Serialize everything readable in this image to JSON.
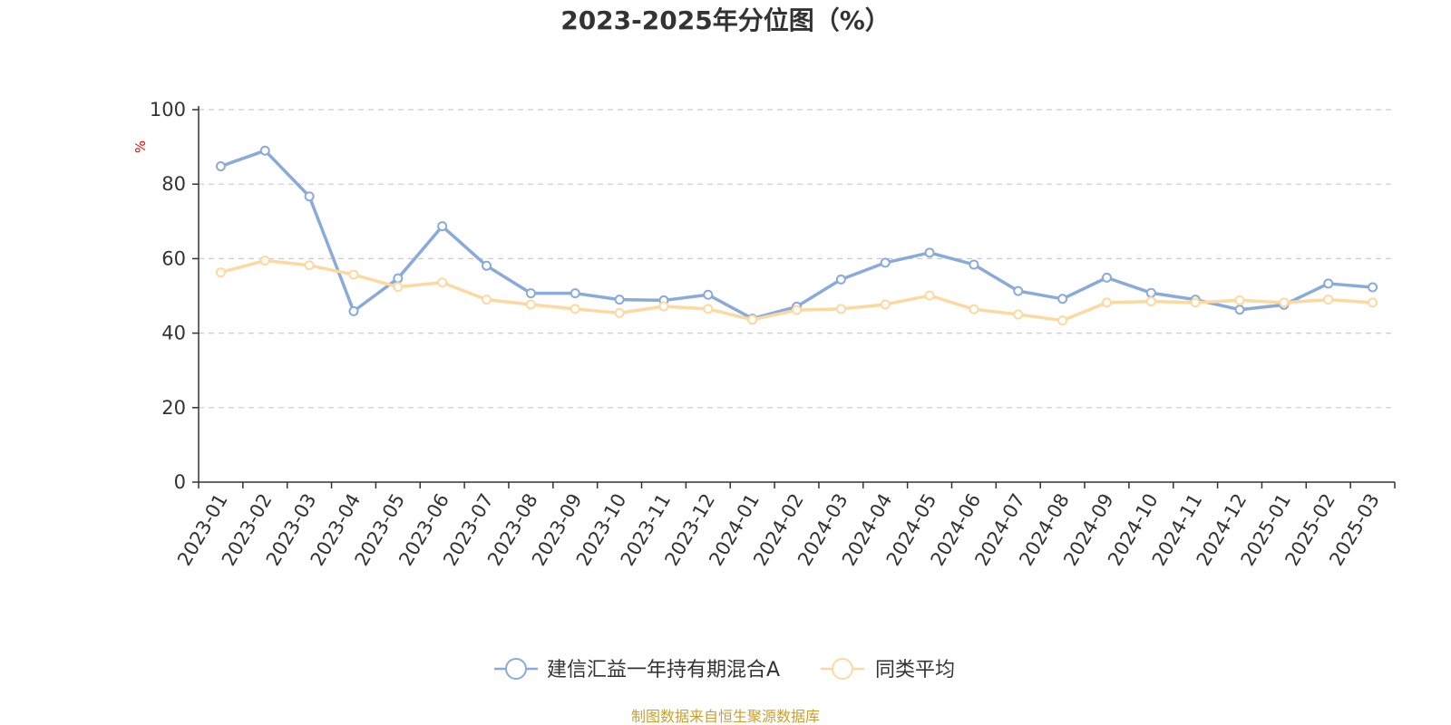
{
  "chart_data": {
    "type": "line",
    "title": "2023-2025年分位图（%）",
    "ylabel": "%",
    "xlabel": "",
    "ylim": [
      0,
      100
    ],
    "yticks": [
      0,
      20,
      40,
      60,
      80,
      100
    ],
    "grid": true,
    "legend_position": "bottom-center",
    "categories": [
      "2023-01",
      "2023-02",
      "2023-03",
      "2023-04",
      "2023-05",
      "2023-06",
      "2023-07",
      "2023-08",
      "2023-09",
      "2023-10",
      "2023-11",
      "2023-12",
      "2024-01",
      "2024-02",
      "2024-03",
      "2024-04",
      "2024-05",
      "2024-06",
      "2024-07",
      "2024-08",
      "2024-09",
      "2024-10",
      "2024-11",
      "2024-12",
      "2025-01",
      "2025-02",
      "2025-03"
    ],
    "series": [
      {
        "name": "建信汇益一年持有期混合A",
        "color": "#8aabd9",
        "values": [
          84.8,
          89.0,
          76.7,
          45.9,
          54.7,
          68.7,
          58.1,
          50.7,
          50.7,
          49.0,
          48.8,
          50.3,
          43.9,
          47.1,
          54.4,
          58.9,
          61.6,
          58.4,
          51.3,
          49.2,
          54.9,
          50.8,
          49.0,
          46.3,
          47.6,
          53.3,
          52.3
        ]
      },
      {
        "name": "同类平均",
        "color": "#fcd9a0",
        "values": [
          56.3,
          59.5,
          58.2,
          55.7,
          52.4,
          53.6,
          49.0,
          47.7,
          46.5,
          45.4,
          47.2,
          46.5,
          43.6,
          46.2,
          46.5,
          47.7,
          50.1,
          46.4,
          45.0,
          43.4,
          48.2,
          48.5,
          48.2,
          48.8,
          48.2,
          49.0,
          48.2
        ]
      }
    ]
  },
  "source": "制图数据来自恒生聚源数据库"
}
